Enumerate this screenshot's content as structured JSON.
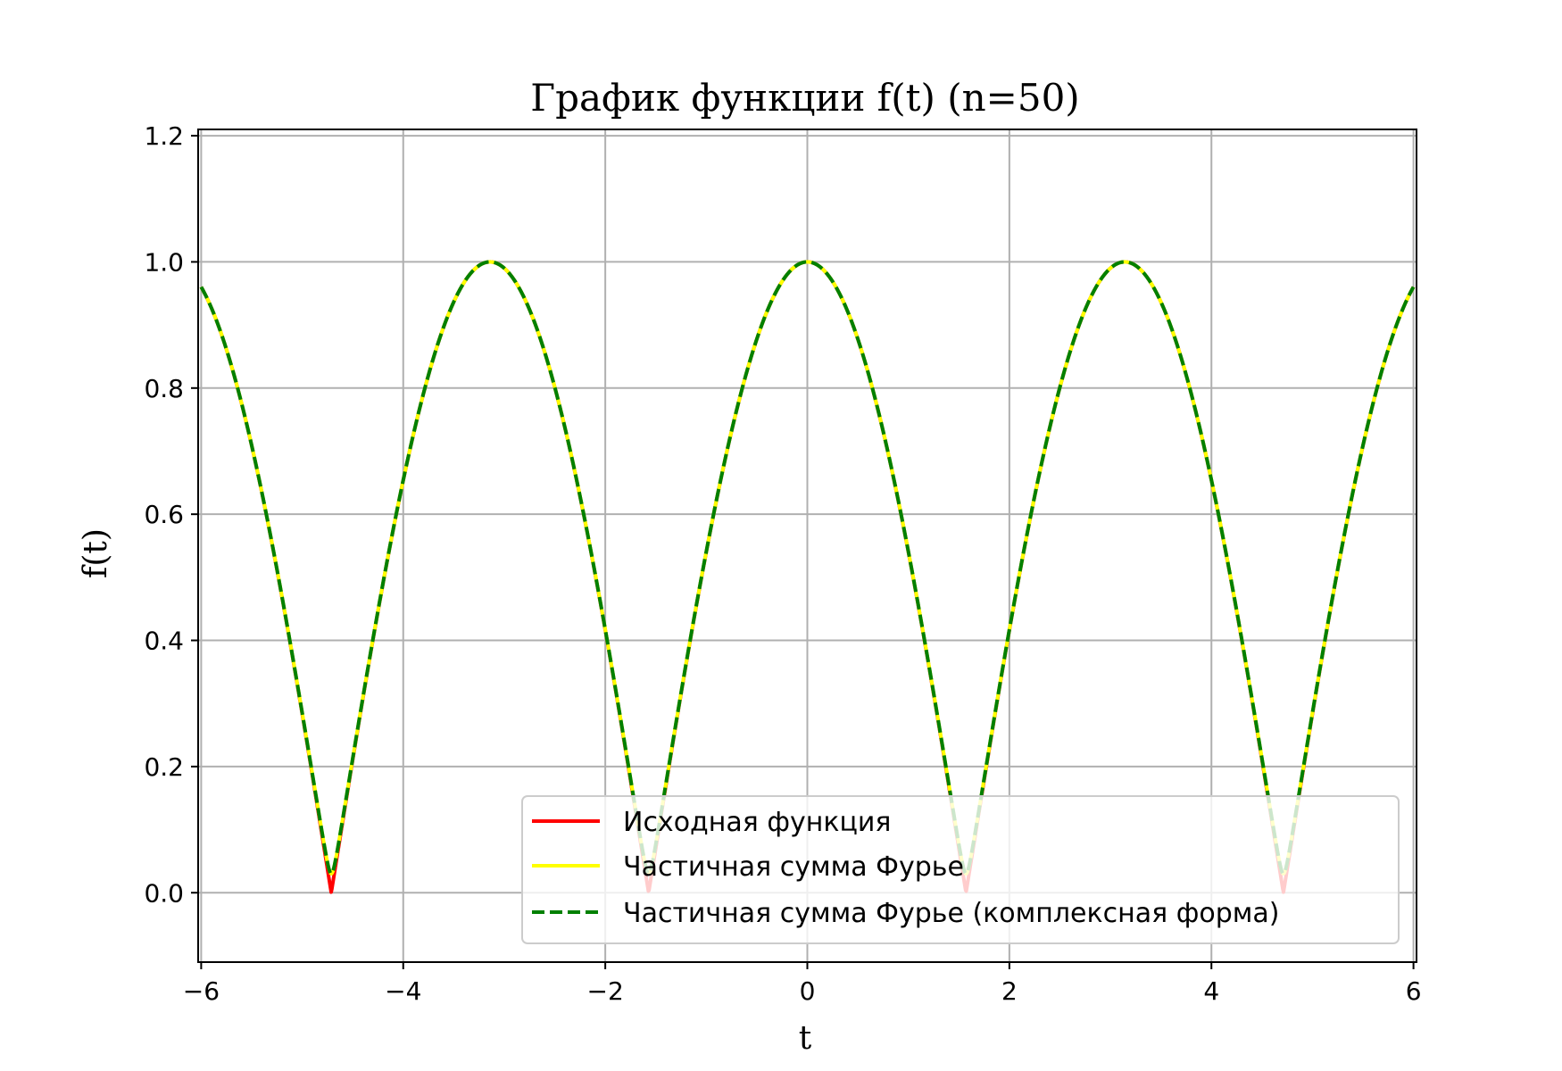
{
  "chart_data": {
    "type": "line",
    "title": "График функции f(t) (n=50)",
    "xlabel": "t",
    "ylabel": "f(t)",
    "xlim": [
      -6.03,
      6.03
    ],
    "ylim": [
      -0.11,
      1.21
    ],
    "xticks": [
      -6,
      -4,
      -2,
      0,
      2,
      4,
      6
    ],
    "xtick_labels": [
      "−6",
      "−4",
      "−2",
      "0",
      "2",
      "4",
      "6"
    ],
    "yticks": [
      0.0,
      0.2,
      0.4,
      0.6,
      0.8,
      1.0,
      1.2
    ],
    "ytick_labels": [
      "0.0",
      "0.2",
      "0.4",
      "0.6",
      "0.8",
      "1.0",
      "1.2"
    ],
    "grid": true,
    "legend_position": "lower-right",
    "x_range": [
      -6,
      6
    ],
    "series": [
      {
        "name": "Исходная функция",
        "color": "#ff0000",
        "style": "solid",
        "function": "abs(cos(t))",
        "min_value": 0.0
      },
      {
        "name": "Частичная сумма Фурье",
        "color": "#ffff00",
        "style": "solid",
        "function": "abs(cos(t))",
        "min_value": 0.03
      },
      {
        "name": "Частичная сумма Фурье (комплексная форма)",
        "color": "#008000",
        "style": "dashed",
        "function": "abs(cos(t))",
        "min_value": 0.03
      }
    ]
  }
}
